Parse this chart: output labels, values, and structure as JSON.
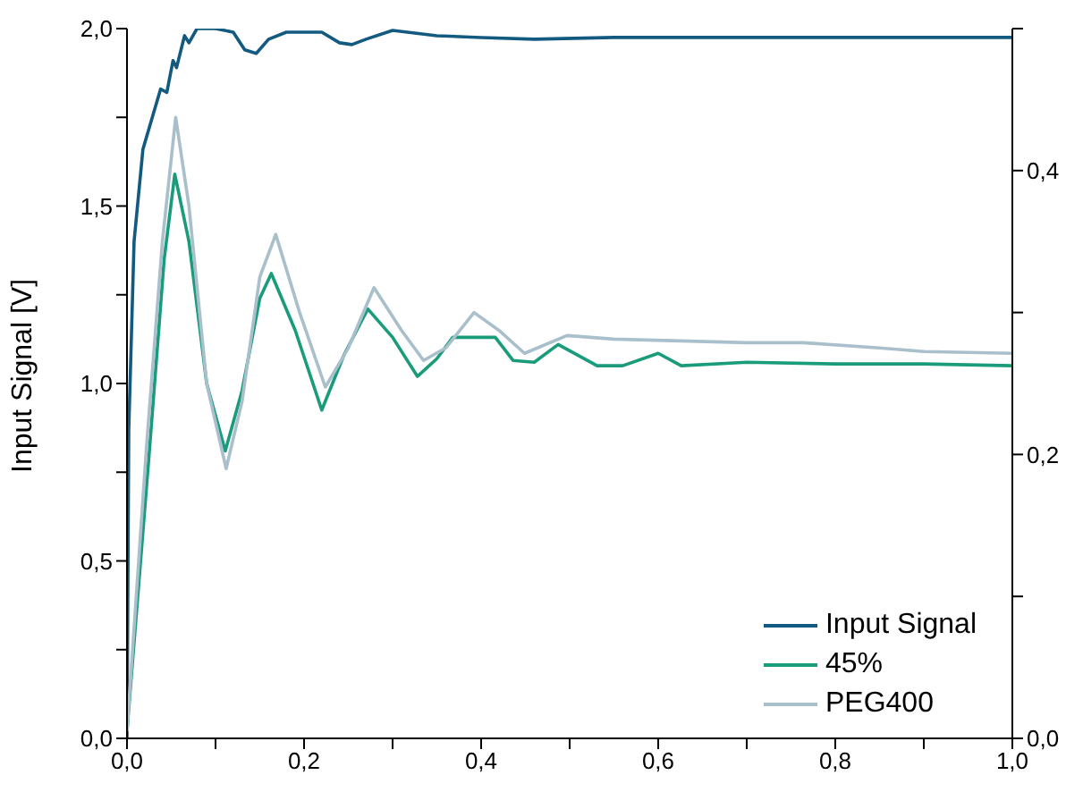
{
  "chart_data": {
    "type": "line",
    "ylabel": "Input Signal [V]",
    "legend": "bottom right",
    "marker": "none",
    "line_style": "solid",
    "xlim": [
      0,
      1
    ],
    "xticks": [
      {
        "value": 0,
        "label": "0,0"
      },
      {
        "value": 0.1,
        "label": null
      },
      {
        "value": 0.2,
        "label": "0,2"
      },
      {
        "value": 0.3,
        "label": null
      },
      {
        "value": 0.4,
        "label": "0,4"
      },
      {
        "value": 0.5,
        "label": null
      },
      {
        "value": 0.6,
        "label": "0,6"
      },
      {
        "value": 0.7,
        "label": null
      },
      {
        "value": 0.8,
        "label": "0,8"
      },
      {
        "value": 0.9,
        "label": null
      },
      {
        "value": 1,
        "label": "1,0"
      }
    ],
    "ylim": [
      0,
      2
    ],
    "yticks": [
      {
        "value": 0,
        "label": "0,0"
      },
      {
        "value": 0.25,
        "label": null
      },
      {
        "value": 0.5,
        "label": "0,5"
      },
      {
        "value": 0.75,
        "label": null
      },
      {
        "value": 1,
        "label": "1,0"
      },
      {
        "value": 1.25,
        "label": null
      },
      {
        "value": 1.5,
        "label": "1,5"
      },
      {
        "value": 1.75,
        "label": null
      },
      {
        "value": 2,
        "label": "2,0"
      }
    ],
    "y2lim": [
      0,
      0.5
    ],
    "y2ticks": [
      {
        "value": 0,
        "label": "0,0"
      },
      {
        "value": 0.1,
        "label": null
      },
      {
        "value": 0.2,
        "label": "0,2"
      },
      {
        "value": 0.3,
        "label": null
      },
      {
        "value": 0.4,
        "label": "0,4"
      },
      {
        "value": 0.5,
        "label": null
      }
    ],
    "series": [
      {
        "name": "Input Signal",
        "color": "#125a80",
        "x": [
          0,
          0.002,
          0.008,
          0.018,
          0.038,
          0.045,
          0.052,
          0.056,
          0.065,
          0.07,
          0.079,
          0.1,
          0.12,
          0.133,
          0.146,
          0.16,
          0.18,
          0.22,
          0.24,
          0.254,
          0.27,
          0.3,
          0.35,
          0.4,
          0.46,
          0.55,
          0.65,
          0.75,
          0.85,
          1
        ],
        "values": [
          0,
          0.87,
          1.4,
          1.66,
          1.83,
          1.82,
          1.91,
          1.89,
          1.98,
          1.96,
          2.0,
          2.0,
          1.99,
          1.94,
          1.93,
          1.97,
          1.99,
          1.99,
          1.96,
          1.955,
          1.97,
          1.995,
          1.98,
          1.975,
          1.97,
          1.975,
          1.975,
          1.975,
          1.975,
          1.975
        ]
      },
      {
        "name": "45%",
        "color": "#1a9c7a",
        "x": [
          0,
          0.025,
          0.042,
          0.054,
          0.07,
          0.09,
          0.111,
          0.13,
          0.15,
          0.163,
          0.19,
          0.22,
          0.245,
          0.272,
          0.3,
          0.328,
          0.35,
          0.368,
          0.416,
          0.436,
          0.46,
          0.487,
          0.531,
          0.56,
          0.6,
          0.626,
          0.7,
          0.8,
          0.9,
          1
        ],
        "values": [
          0.02,
          0.8,
          1.35,
          1.59,
          1.4,
          1.0,
          0.81,
          0.98,
          1.24,
          1.31,
          1.15,
          0.925,
          1.08,
          1.21,
          1.13,
          1.02,
          1.07,
          1.13,
          1.13,
          1.065,
          1.06,
          1.11,
          1.05,
          1.05,
          1.085,
          1.05,
          1.06,
          1.055,
          1.055,
          1.05
        ]
      },
      {
        "name": "PEG400",
        "color": "#a9bfcc",
        "x": [
          0,
          0.022,
          0.04,
          0.055,
          0.07,
          0.09,
          0.112,
          0.13,
          0.15,
          0.168,
          0.195,
          0.224,
          0.25,
          0.279,
          0.31,
          0.335,
          0.36,
          0.392,
          0.42,
          0.449,
          0.497,
          0.55,
          0.626,
          0.7,
          0.764,
          0.85,
          0.9,
          1
        ],
        "values": [
          0.02,
          0.82,
          1.4,
          1.75,
          1.5,
          1.0,
          0.76,
          0.95,
          1.3,
          1.42,
          1.2,
          0.99,
          1.1,
          1.27,
          1.15,
          1.065,
          1.1,
          1.2,
          1.15,
          1.085,
          1.135,
          1.125,
          1.12,
          1.115,
          1.115,
          1.1,
          1.09,
          1.085
        ]
      }
    ]
  }
}
